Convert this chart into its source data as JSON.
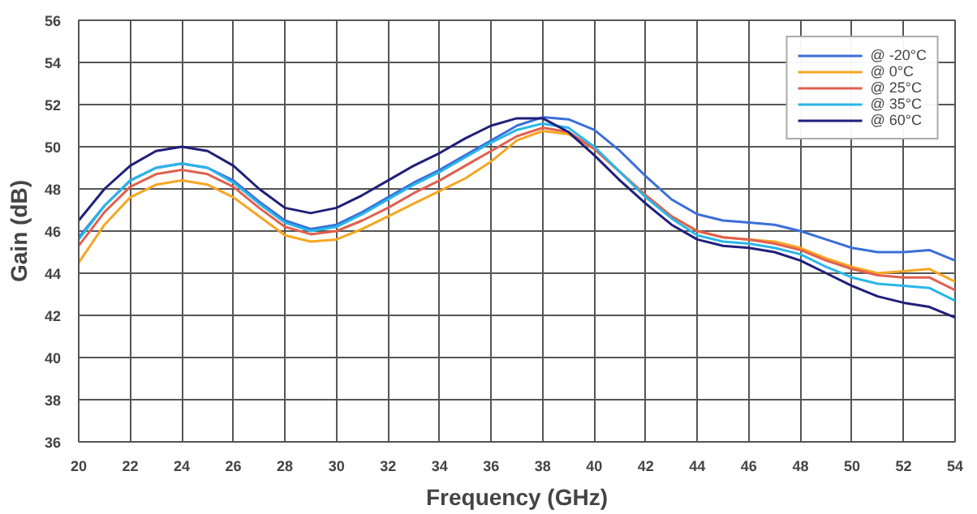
{
  "chart_data": {
    "type": "line",
    "xlabel": "Frequency (GHz)",
    "ylabel": "Gain (dB)",
    "x": [
      20,
      21,
      22,
      23,
      24,
      25,
      26,
      27,
      28,
      29,
      30,
      31,
      32,
      33,
      34,
      35,
      36,
      37,
      38,
      39,
      40,
      41,
      42,
      43,
      44,
      45,
      46,
      47,
      48,
      49,
      50,
      51,
      52,
      53,
      54
    ],
    "xlim": [
      20,
      54
    ],
    "ylim": [
      36,
      56
    ],
    "xticks": [
      20,
      22,
      24,
      26,
      28,
      30,
      32,
      34,
      36,
      38,
      40,
      42,
      44,
      46,
      48,
      50,
      52,
      54
    ],
    "yticks": [
      36,
      38,
      40,
      42,
      44,
      46,
      48,
      50,
      52,
      54,
      56
    ],
    "grid": true,
    "legend": "top right",
    "marker": "none",
    "line_style": "solid",
    "series": [
      {
        "name": "@ -20°C",
        "color": "#3a6fd8",
        "values": [
          45.7,
          47.2,
          48.4,
          49.0,
          49.2,
          49.0,
          48.4,
          47.4,
          46.5,
          46.1,
          46.3,
          46.9,
          47.6,
          48.3,
          48.9,
          49.6,
          50.3,
          51.0,
          51.4,
          51.3,
          50.8,
          49.8,
          48.6,
          47.5,
          46.8,
          46.5,
          46.4,
          46.3,
          46.0,
          45.6,
          45.2,
          45.0,
          45.0,
          45.1,
          44.6
        ]
      },
      {
        "name": "@ 0°C",
        "color": "#f5a623",
        "values": [
          44.5,
          46.3,
          47.6,
          48.2,
          48.4,
          48.2,
          47.6,
          46.7,
          45.8,
          45.5,
          45.6,
          46.1,
          46.7,
          47.3,
          47.9,
          48.5,
          49.3,
          50.3,
          50.75,
          50.6,
          49.9,
          48.8,
          47.7,
          46.7,
          46.0,
          45.7,
          45.6,
          45.5,
          45.2,
          44.7,
          44.3,
          44.0,
          44.1,
          44.2,
          43.6
        ]
      },
      {
        "name": "@ 25°C",
        "color": "#e06050",
        "values": [
          45.3,
          46.9,
          48.1,
          48.7,
          48.9,
          48.7,
          48.1,
          47.1,
          46.2,
          45.85,
          46.0,
          46.5,
          47.1,
          47.8,
          48.4,
          49.1,
          49.8,
          50.5,
          50.9,
          50.7,
          49.9,
          48.8,
          47.7,
          46.7,
          46.0,
          45.7,
          45.6,
          45.4,
          45.1,
          44.6,
          44.2,
          43.9,
          43.8,
          43.8,
          43.2
        ]
      },
      {
        "name": "@ 35°C",
        "color": "#29b6e8",
        "values": [
          45.6,
          47.2,
          48.4,
          49.0,
          49.2,
          49.0,
          48.3,
          47.3,
          46.4,
          46.0,
          46.2,
          46.8,
          47.5,
          48.2,
          48.8,
          49.5,
          50.2,
          50.8,
          51.1,
          50.9,
          50.0,
          48.8,
          47.6,
          46.6,
          45.8,
          45.5,
          45.4,
          45.2,
          44.9,
          44.3,
          43.8,
          43.5,
          43.4,
          43.3,
          42.7
        ]
      },
      {
        "name": "@ 60°C",
        "color": "#1f1f7a",
        "values": [
          46.5,
          48.0,
          49.1,
          49.8,
          50.0,
          49.8,
          49.1,
          48.0,
          47.1,
          46.85,
          47.1,
          47.7,
          48.4,
          49.1,
          49.7,
          50.4,
          51.0,
          51.35,
          51.35,
          50.7,
          49.6,
          48.4,
          47.3,
          46.3,
          45.6,
          45.3,
          45.2,
          45.0,
          44.6,
          44.0,
          43.4,
          42.9,
          42.6,
          42.4,
          41.9
        ]
      }
    ]
  }
}
